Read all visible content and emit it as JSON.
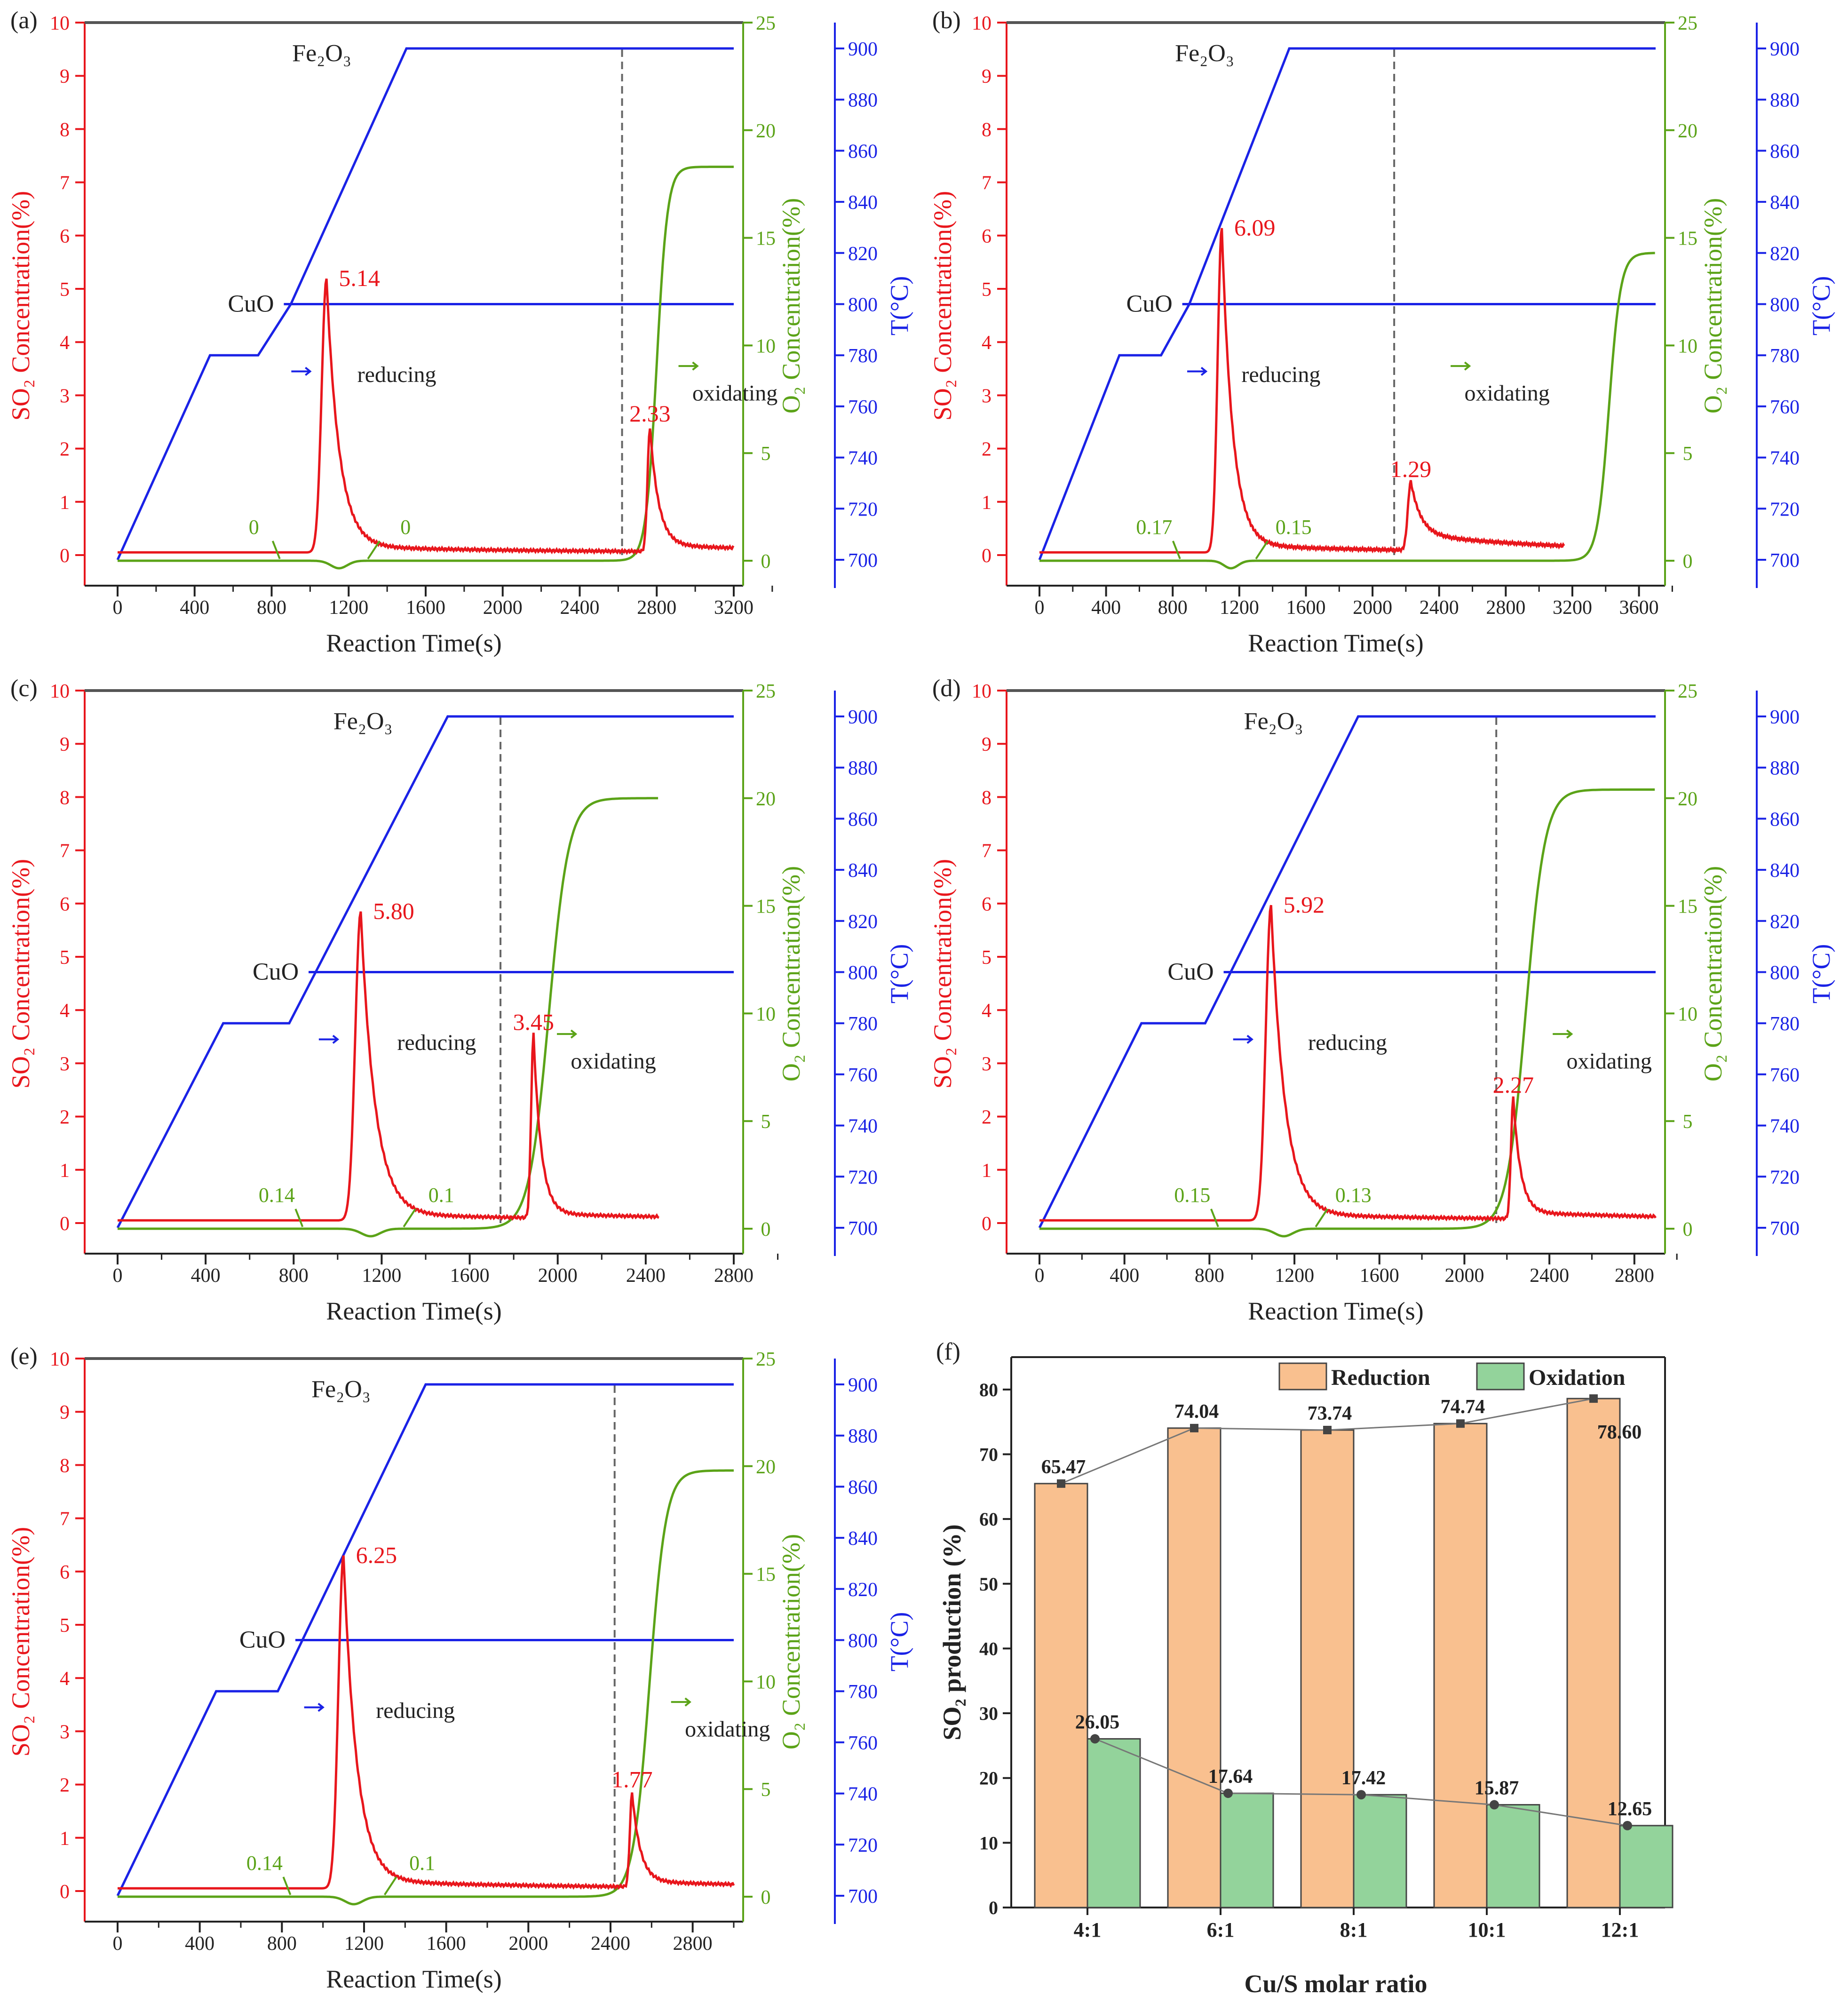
{
  "figure": {
    "colors": {
      "so2": "#e8161c",
      "o2": "#5ba318",
      "temp": "#1a22e6",
      "axis_black": "#222222",
      "top_rule": "#555555",
      "dash": "#666666",
      "bar_reduction": "#f9c08f",
      "bar_oxidation": "#93d39b",
      "bar_edge": "#444444",
      "trend_line": "#777777",
      "trend_marker": "#444444"
    },
    "panels": [
      {
        "id": "a",
        "letter": "(a)",
        "xmax": 3200,
        "x_ticks": [
          "0",
          "400",
          "800",
          "1200",
          "1600",
          "2000",
          "2400",
          "2800",
          "3200"
        ],
        "y_left_ticks": [
          "0",
          "1",
          "2",
          "3",
          "4",
          "5",
          "6",
          "7",
          "8",
          "9",
          "10"
        ],
        "y_o2_ticks": [
          "0",
          "5",
          "10",
          "15",
          "20",
          "25"
        ],
        "y_temp_ticks": [
          "700",
          "720",
          "740",
          "760",
          "780",
          "800",
          "820",
          "840",
          "860",
          "880",
          "900"
        ],
        "x_label": "Reaction Time(s)",
        "y_left_label": "SO₂ Concentration(%)",
        "y_o2_label": "O₂ Concentration(%)",
        "y_temp_label": "T(°C)",
        "fe2o3_label": "Fe₂O₃",
        "cuo_label": "CuO",
        "reducing_label": "reducing",
        "oxidating_label": "oxidating",
        "peak1_label": "5.14",
        "peak2_label": "2.33",
        "o2_label_1": "0",
        "o2_label_2": "0",
        "dashed_line_t": 2620,
        "so2": {
          "base": 0.05,
          "p1": {
            "t": 1085,
            "h": 5.14,
            "wl": 35,
            "tau": 65
          },
          "p2": {
            "t": 2765,
            "h": 2.33,
            "wl": 18,
            "tau": 45
          },
          "tail1": 0.12,
          "tail2": 0.12,
          "tail_mid": 0.05,
          "end": 3200
        },
        "o2": {
          "rise_t": 2800,
          "final": 18.3,
          "k": 28,
          "dip_t": 1150,
          "end": 3200
        },
        "temp": {
          "t1": 480,
          "t2": 730,
          "t3": 900,
          "t4": 1500,
          "end": 3200
        }
      },
      {
        "id": "b",
        "letter": "(b)",
        "xmax": 3700,
        "x_ticks": [
          "0",
          "400",
          "800",
          "1200",
          "1600",
          "2000",
          "2400",
          "2800",
          "3200",
          "3600"
        ],
        "y_left_ticks": [
          "0",
          "1",
          "2",
          "3",
          "4",
          "5",
          "6",
          "7",
          "8",
          "9",
          "10"
        ],
        "y_o2_ticks": [
          "0",
          "5",
          "10",
          "15",
          "20",
          "25"
        ],
        "y_temp_ticks": [
          "700",
          "720",
          "740",
          "760",
          "780",
          "800",
          "820",
          "840",
          "860",
          "880",
          "900"
        ],
        "x_label": "Reaction Time(s)",
        "y_left_label": "SO₂ Concentration(%)",
        "y_o2_label": "O₂ Concentration(%)",
        "y_temp_label": "T(°C)",
        "fe2o3_label": "Fe₂O₃",
        "cuo_label": "CuO",
        "reducing_label": "reducing",
        "oxidating_label": "oxidating",
        "peak1_label": "6.09",
        "peak2_label": "1.29",
        "o2_label_1": "0.17",
        "o2_label_2": "0.15",
        "dashed_line_t": 2130,
        "so2": {
          "base": 0.05,
          "p1": {
            "t": 1095,
            "h": 6.09,
            "wl": 35,
            "tau": 65
          },
          "p2": {
            "t": 2230,
            "h": 1.29,
            "wl": 25,
            "tau": 60
          },
          "tail1": 0.15,
          "tail2": 0.3,
          "tail_mid": 0.05,
          "end": 3150
        },
        "o2": {
          "rise_t": 3420,
          "final": 14.3,
          "k": 35,
          "dip_t": 1150,
          "end": 3700
        },
        "temp": {
          "t1": 480,
          "t2": 730,
          "t3": 900,
          "t4": 1500,
          "end": 3700
        }
      },
      {
        "id": "c",
        "letter": "(c)",
        "xmax": 2800,
        "x_ticks": [
          "0",
          "400",
          "800",
          "1200",
          "1600",
          "2000",
          "2400",
          "2800"
        ],
        "y_left_ticks": [
          "0",
          "1",
          "2",
          "3",
          "4",
          "5",
          "6",
          "7",
          "8",
          "9",
          "10"
        ],
        "y_o2_ticks": [
          "0",
          "5",
          "10",
          "15",
          "20",
          "25"
        ],
        "y_temp_ticks": [
          "700",
          "720",
          "740",
          "760",
          "780",
          "800",
          "820",
          "840",
          "860",
          "880",
          "900"
        ],
        "x_label": "Reaction Time(s)",
        "y_left_label": "SO₂ Concentration(%)",
        "y_o2_label": "O₂ Concentration(%)",
        "y_temp_label": "T(°C)",
        "fe2o3_label": "Fe₂O₃",
        "cuo_label": "CuO",
        "reducing_label": "reducing",
        "oxidating_label": "oxidating",
        "peak1_label": "5.80",
        "peak2_label": "3.45",
        "o2_label_1": "0.14",
        "o2_label_2": "0.1",
        "dashed_line_t": 1740,
        "so2": {
          "base": 0.05,
          "p1": {
            "t": 1105,
            "h": 5.8,
            "wl": 35,
            "tau": 65
          },
          "p2": {
            "t": 1890,
            "h": 3.45,
            "wl": 15,
            "tau": 35
          },
          "tail1": 0.12,
          "tail2": 0.08,
          "tail_mid": 0.05,
          "end": 2460
        },
        "o2": {
          "rise_t": 1960,
          "final": 20.0,
          "k": 45,
          "dip_t": 1150,
          "end": 2460
        },
        "temp": {
          "t1": 480,
          "t2": 780,
          "t3": 900,
          "t4": 1500,
          "end": 2800
        }
      },
      {
        "id": "d",
        "letter": "(d)",
        "xmax": 2900,
        "x_ticks": [
          "0",
          "400",
          "800",
          "1200",
          "1600",
          "2000",
          "2400",
          "2800"
        ],
        "y_left_ticks": [
          "0",
          "1",
          "2",
          "3",
          "4",
          "5",
          "6",
          "7",
          "8",
          "9",
          "10"
        ],
        "y_o2_ticks": [
          "0",
          "5",
          "10",
          "15",
          "20",
          "25"
        ],
        "y_temp_ticks": [
          "700",
          "720",
          "740",
          "760",
          "780",
          "800",
          "820",
          "840",
          "860",
          "880",
          "900"
        ],
        "x_label": "Reaction Time(s)",
        "y_left_label": "SO₂ Concentration(%)",
        "y_o2_label": "O₂ Concentration(%)",
        "y_temp_label": "T(°C)",
        "fe2o3_label": "Fe₂O₃",
        "cuo_label": "CuO",
        "reducing_label": "reducing",
        "oxidating_label": "oxidating",
        "peak1_label": "5.92",
        "peak2_label": "2.27",
        "o2_label_1": "0.15",
        "o2_label_2": "0.13",
        "dashed_line_t": 2150,
        "so2": {
          "base": 0.05,
          "p1": {
            "t": 1090,
            "h": 5.92,
            "wl": 35,
            "tau": 65
          },
          "p2": {
            "t": 2230,
            "h": 2.27,
            "wl": 15,
            "tau": 35
          },
          "tail1": 0.12,
          "tail2": 0.12,
          "tail_mid": 0.05,
          "end": 2900
        },
        "o2": {
          "rise_t": 2290,
          "final": 20.4,
          "k": 45,
          "dip_t": 1150,
          "end": 2900
        },
        "temp": {
          "t1": 480,
          "t2": 780,
          "t3": 900,
          "t4": 1500,
          "end": 2900
        }
      },
      {
        "id": "e",
        "letter": "(e)",
        "xmax": 3000,
        "x_ticks": [
          "0",
          "400",
          "800",
          "1200",
          "1600",
          "2000",
          "2400",
          "2800"
        ],
        "y_left_ticks": [
          "0",
          "1",
          "2",
          "3",
          "4",
          "5",
          "6",
          "7",
          "8",
          "9",
          "10"
        ],
        "y_o2_ticks": [
          "0",
          "5",
          "10",
          "15",
          "20",
          "25"
        ],
        "y_temp_ticks": [
          "700",
          "720",
          "740",
          "760",
          "780",
          "800",
          "820",
          "840",
          "860",
          "880",
          "900"
        ],
        "x_label": "Reaction Time(s)",
        "y_left_label": "SO₂ Concentration(%)",
        "y_o2_label": "O₂ Concentration(%)",
        "y_temp_label": "T(°C)",
        "fe2o3_label": "Fe₂O₃",
        "cuo_label": "CuO",
        "reducing_label": "reducing",
        "oxidating_label": "oxidating",
        "peak1_label": "6.25",
        "peak2_label": "1.77",
        "o2_label_1": "0.14",
        "o2_label_2": "0.1",
        "dashed_line_t": 2420,
        "so2": {
          "base": 0.05,
          "p1": {
            "t": 1100,
            "h": 6.25,
            "wl": 35,
            "tau": 65
          },
          "p2": {
            "t": 2505,
            "h": 1.77,
            "wl": 15,
            "tau": 40
          },
          "tail1": 0.15,
          "tail2": 0.1,
          "tail_mid": 0.05,
          "end": 3000
        },
        "o2": {
          "rise_t": 2590,
          "final": 19.8,
          "k": 40,
          "dip_t": 1150,
          "end": 3000
        },
        "temp": {
          "t1": 480,
          "t2": 780,
          "t3": 900,
          "t4": 1500,
          "end": 3000
        }
      }
    ],
    "bar_panel": {
      "letter": "(f)",
      "y_label": "SO₂ production (%)",
      "x_label": "Cu/S molar ratio",
      "y_ticks": [
        "0",
        "10",
        "20",
        "30",
        "40",
        "50",
        "60",
        "70",
        "80"
      ],
      "legend": {
        "reduction": "Reduction",
        "oxidation": "Oxidation"
      }
    }
  },
  "chart_data": [
    {
      "type": "line",
      "panel": "(a)",
      "title": "",
      "xlabel": "Reaction Time(s)",
      "ylabel": "SO₂ Concentration(%)",
      "y2label": "O₂ Concentration(%)",
      "y3label": "T(°C)",
      "xlim": [
        0,
        3200
      ],
      "ylim": [
        0,
        10
      ],
      "y2lim": [
        0,
        25
      ],
      "y3lim": [
        700,
        900
      ],
      "series": [
        {
          "name": "SO2",
          "peaks": [
            {
              "x": 1085,
              "y": 5.14
            },
            {
              "x": 2765,
              "y": 2.33
            }
          ]
        },
        {
          "name": "O2",
          "x": [
            0,
            2700,
            2800,
            2900,
            3200
          ],
          "y": [
            0,
            0,
            14,
            17.5,
            18.3
          ]
        },
        {
          "name": "Temperature",
          "x": [
            0,
            480,
            730,
            900,
            1500,
            3200
          ],
          "y": [
            700,
            780,
            780,
            800,
            900,
            900
          ]
        }
      ],
      "annotations": [
        "Fe₂O₃",
        "CuO",
        "reducing",
        "oxidating",
        "5.14",
        "2.33",
        "0",
        "0"
      ]
    },
    {
      "type": "line",
      "panel": "(b)",
      "title": "",
      "xlabel": "Reaction Time(s)",
      "ylabel": "SO₂ Concentration(%)",
      "y2label": "O₂ Concentration(%)",
      "y3label": "T(°C)",
      "xlim": [
        0,
        3700
      ],
      "ylim": [
        0,
        10
      ],
      "y2lim": [
        0,
        25
      ],
      "y3lim": [
        700,
        900
      ],
      "series": [
        {
          "name": "SO2",
          "peaks": [
            {
              "x": 1095,
              "y": 6.09
            },
            {
              "x": 2230,
              "y": 1.29
            }
          ]
        },
        {
          "name": "O2",
          "x": [
            0,
            3330,
            3420,
            3550,
            3700
          ],
          "y": [
            0,
            0,
            5,
            12,
            14.3
          ]
        },
        {
          "name": "Temperature",
          "x": [
            0,
            480,
            730,
            900,
            1500,
            3700
          ],
          "y": [
            700,
            780,
            780,
            800,
            900,
            900
          ]
        }
      ],
      "annotations": [
        "Fe₂O₃",
        "CuO",
        "reducing",
        "oxidating",
        "6.09",
        "1.29",
        "0.17",
        "0.15"
      ]
    },
    {
      "type": "line",
      "panel": "(c)",
      "title": "",
      "xlabel": "Reaction Time(s)",
      "ylabel": "SO₂ Concentration(%)",
      "y2label": "O₂ Concentration(%)",
      "y3label": "T(°C)",
      "xlim": [
        0,
        2800
      ],
      "ylim": [
        0,
        10
      ],
      "y2lim": [
        0,
        25
      ],
      "y3lim": [
        700,
        900
      ],
      "series": [
        {
          "name": "SO2",
          "peaks": [
            {
              "x": 1105,
              "y": 5.8
            },
            {
              "x": 1890,
              "y": 3.45
            }
          ]
        },
        {
          "name": "O2",
          "x": [
            0,
            1900,
            1960,
            2100,
            2460
          ],
          "y": [
            0,
            0,
            10,
            18,
            20
          ]
        },
        {
          "name": "Temperature",
          "x": [
            0,
            480,
            780,
            900,
            1500,
            2800
          ],
          "y": [
            700,
            780,
            780,
            800,
            900,
            900
          ]
        }
      ],
      "annotations": [
        "Fe₂O₃",
        "CuO",
        "reducing",
        "oxidating",
        "5.80",
        "3.45",
        "0.14",
        "0.1"
      ]
    },
    {
      "type": "line",
      "panel": "(d)",
      "title": "",
      "xlabel": "Reaction Time(s)",
      "ylabel": "SO₂ Concentration(%)",
      "y2label": "O₂ Concentration(%)",
      "y3label": "T(°C)",
      "xlim": [
        0,
        2900
      ],
      "ylim": [
        0,
        10
      ],
      "y2lim": [
        0,
        25
      ],
      "y3lim": [
        700,
        900
      ],
      "series": [
        {
          "name": "SO2",
          "peaks": [
            {
              "x": 1090,
              "y": 5.92
            },
            {
              "x": 2230,
              "y": 2.27
            }
          ]
        },
        {
          "name": "O2",
          "x": [
            0,
            2230,
            2290,
            2450,
            2900
          ],
          "y": [
            0,
            0,
            10,
            18.5,
            20.4
          ]
        },
        {
          "name": "Temperature",
          "x": [
            0,
            480,
            780,
            900,
            1500,
            2900
          ],
          "y": [
            700,
            780,
            780,
            800,
            900,
            900
          ]
        }
      ],
      "annotations": [
        "Fe₂O₃",
        "CuO",
        "reducing",
        "oxidating",
        "5.92",
        "2.27",
        "0.15",
        "0.13"
      ]
    },
    {
      "type": "line",
      "panel": "(e)",
      "title": "",
      "xlabel": "Reaction Time(s)",
      "ylabel": "SO₂ Concentration(%)",
      "y2label": "O₂ Concentration(%)",
      "y3label": "T(°C)",
      "xlim": [
        0,
        3000
      ],
      "ylim": [
        0,
        10
      ],
      "y2lim": [
        0,
        25
      ],
      "y3lim": [
        700,
        900
      ],
      "series": [
        {
          "name": "SO2",
          "peaks": [
            {
              "x": 1100,
              "y": 6.25
            },
            {
              "x": 2505,
              "y": 1.77
            }
          ]
        },
        {
          "name": "O2",
          "x": [
            0,
            2520,
            2590,
            2750,
            3000
          ],
          "y": [
            0,
            0,
            10,
            18,
            19.8
          ]
        },
        {
          "name": "Temperature",
          "x": [
            0,
            480,
            780,
            900,
            1500,
            3000
          ],
          "y": [
            700,
            780,
            780,
            800,
            900,
            900
          ]
        }
      ],
      "annotations": [
        "Fe₂O₃",
        "CuO",
        "reducing",
        "oxidating",
        "6.25",
        "1.77",
        "0.14",
        "0.1"
      ]
    },
    {
      "type": "bar",
      "panel": "(f)",
      "title": "",
      "xlabel": "Cu/S molar ratio",
      "ylabel": "SO₂ production (%)",
      "ylim": [
        0,
        85
      ],
      "categories": [
        "4:1",
        "6:1",
        "8:1",
        "10:1",
        "12:1"
      ],
      "series": [
        {
          "name": "Reduction",
          "values": [
            65.47,
            74.04,
            73.74,
            74.74,
            78.6
          ],
          "labels": [
            "65.47",
            "74.04",
            "73.74",
            "74.74",
            "78.60"
          ]
        },
        {
          "name": "Oxidation",
          "values": [
            26.05,
            17.64,
            17.42,
            15.87,
            12.65
          ],
          "labels": [
            "26.05",
            "17.64",
            "17.42",
            "15.87",
            "12.65"
          ]
        }
      ],
      "legend": "top"
    }
  ]
}
